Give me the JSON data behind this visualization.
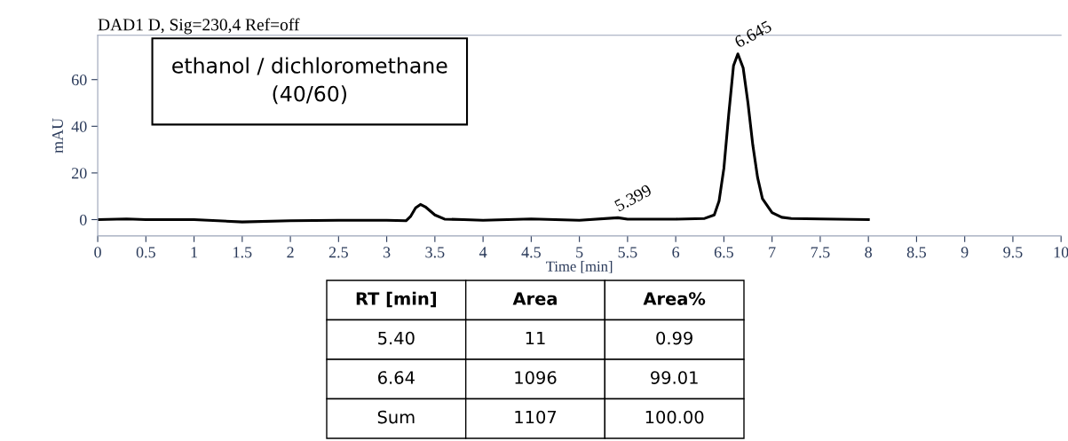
{
  "chart_data": {
    "type": "line",
    "title": "DAD1 D, Sig=230,4 Ref=off",
    "xlabel": "Time [min]",
    "ylabel": "mAU",
    "x": [
      0,
      0.3,
      0.5,
      1,
      1.5,
      2,
      2.5,
      3,
      3.2,
      3.25,
      3.3,
      3.35,
      3.4,
      3.5,
      3.6,
      3.8,
      4,
      4.5,
      5,
      5.4,
      5.5,
      6,
      6.3,
      6.4,
      6.45,
      6.5,
      6.55,
      6.6,
      6.645,
      6.7,
      6.75,
      6.8,
      6.85,
      6.9,
      7,
      7.1,
      7.2,
      7.5,
      8
    ],
    "series": [
      {
        "color": "#000000",
        "values": [
          0,
          0.3,
          0,
          0,
          -1,
          -0.5,
          -0.3,
          -0.3,
          -0.5,
          1.5,
          5,
          6.5,
          5.5,
          2,
          0.2,
          0,
          -0.3,
          0.3,
          -0.3,
          0.8,
          0.2,
          0.2,
          0.5,
          2,
          8,
          22,
          45,
          66,
          71,
          65,
          50,
          32,
          18,
          9,
          3,
          1,
          0.5,
          0.3,
          0
        ]
      }
    ],
    "xlim": [
      0,
      10
    ],
    "xticks": [
      0,
      0.5,
      1,
      1.5,
      2,
      2.5,
      3,
      3.5,
      4,
      4.5,
      5,
      5.5,
      6,
      6.5,
      7,
      7.5,
      8,
      8.5,
      9,
      9.5,
      10
    ],
    "ylim": [
      -7,
      79
    ],
    "yticks": [
      0,
      20,
      40,
      60
    ],
    "grid": false,
    "legend": false,
    "marker": "none",
    "line_style": "solid",
    "annotations": [
      "ethanol / dichloromethane\n(40/60)",
      {
        "text": "5.399",
        "x": 5.399,
        "y": 0.8
      },
      {
        "text": "6.645",
        "x": 6.645,
        "y": 71
      },
      "RT [min]",
      "Area",
      "Area%",
      "5.40",
      "11",
      "0.99",
      "6.64",
      "1096",
      "99.01",
      "Sum",
      "1107",
      "100.00"
    ]
  }
}
